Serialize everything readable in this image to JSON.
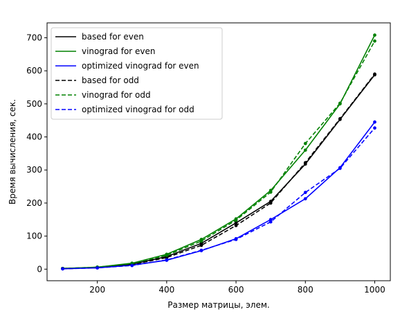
{
  "chart_data": {
    "type": "line",
    "title": "",
    "xlabel": "Размер матрицы, элем.",
    "ylabel": "Время вычисления, сек.",
    "xlim": [
      55,
      1045
    ],
    "ylim": [
      -35,
      745
    ],
    "xticks": [
      200,
      400,
      600,
      800,
      1000
    ],
    "yticks": [
      0,
      100,
      200,
      300,
      400,
      500,
      600,
      700
    ],
    "grid": false,
    "legend_position": "upper left",
    "series": [
      {
        "name": "based for even",
        "color": "#000000",
        "linestyle": "solid",
        "x": [
          100,
          200,
          300,
          400,
          500,
          600,
          700,
          800,
          900,
          1000
        ],
        "y": [
          2,
          5,
          15,
          38,
          78,
          140,
          205,
          318,
          453,
          588
        ]
      },
      {
        "name": "vinograd for even",
        "color": "#008000",
        "linestyle": "solid",
        "x": [
          100,
          200,
          300,
          400,
          500,
          600,
          700,
          800,
          900,
          1000
        ],
        "y": [
          2,
          6,
          18,
          45,
          90,
          152,
          238,
          360,
          500,
          708
        ]
      },
      {
        "name": "optimized vinograd for even",
        "color": "#0000ff",
        "linestyle": "solid",
        "x": [
          100,
          200,
          300,
          400,
          500,
          600,
          700,
          800,
          900,
          1000
        ],
        "y": [
          1,
          4,
          12,
          27,
          56,
          92,
          150,
          213,
          307,
          445
        ]
      },
      {
        "name": "based for odd",
        "color": "#000000",
        "linestyle": "dashed",
        "x": [
          100,
          200,
          300,
          400,
          500,
          600,
          700,
          800,
          900,
          1000
        ],
        "y": [
          2,
          5,
          14,
          35,
          72,
          132,
          200,
          322,
          455,
          590
        ]
      },
      {
        "name": "vinograd for odd",
        "color": "#008000",
        "linestyle": "dashed",
        "x": [
          100,
          200,
          300,
          400,
          500,
          600,
          700,
          800,
          900,
          1000
        ],
        "y": [
          2,
          6,
          17,
          42,
          85,
          148,
          233,
          380,
          502,
          690
        ]
      },
      {
        "name": "optimized vinograd for odd",
        "color": "#0000ff",
        "linestyle": "dashed",
        "x": [
          100,
          200,
          300,
          400,
          500,
          600,
          700,
          800,
          900,
          1000
        ],
        "y": [
          1,
          4,
          11,
          28,
          57,
          90,
          143,
          232,
          305,
          427
        ]
      }
    ]
  }
}
